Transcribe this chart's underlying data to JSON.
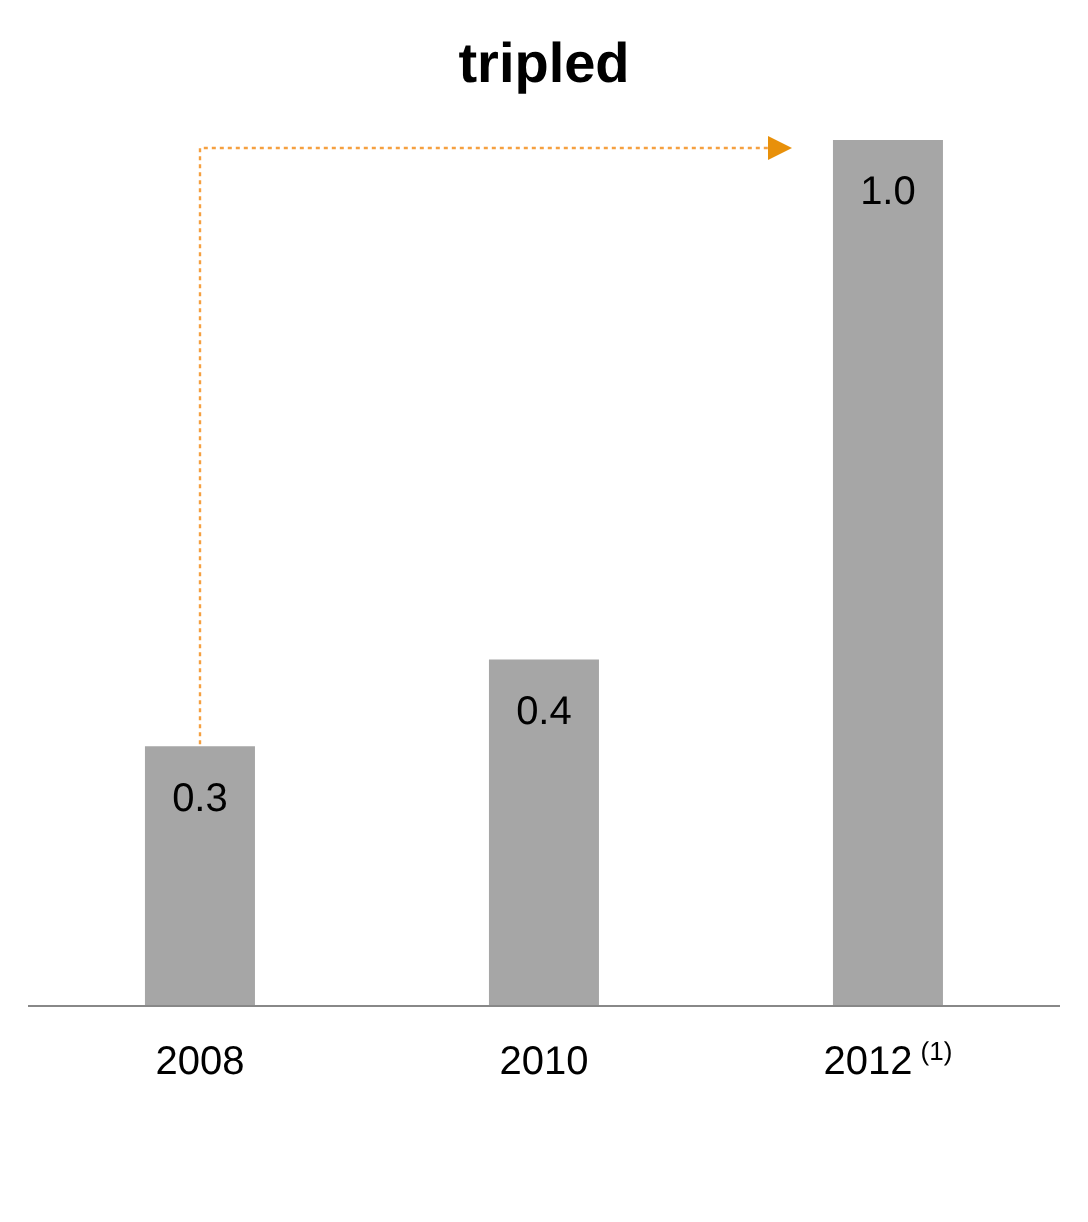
{
  "chart_data": {
    "type": "bar",
    "categories": [
      "2008",
      "2010",
      "2012$^{(1)}$"
    ],
    "values": [
      0.3,
      0.4,
      1.0
    ],
    "value_labels": [
      "0.3",
      "0.4",
      "1.0"
    ],
    "color": "#a6a6a6",
    "annotations": [
      "tripled"
    ]
  }
}
